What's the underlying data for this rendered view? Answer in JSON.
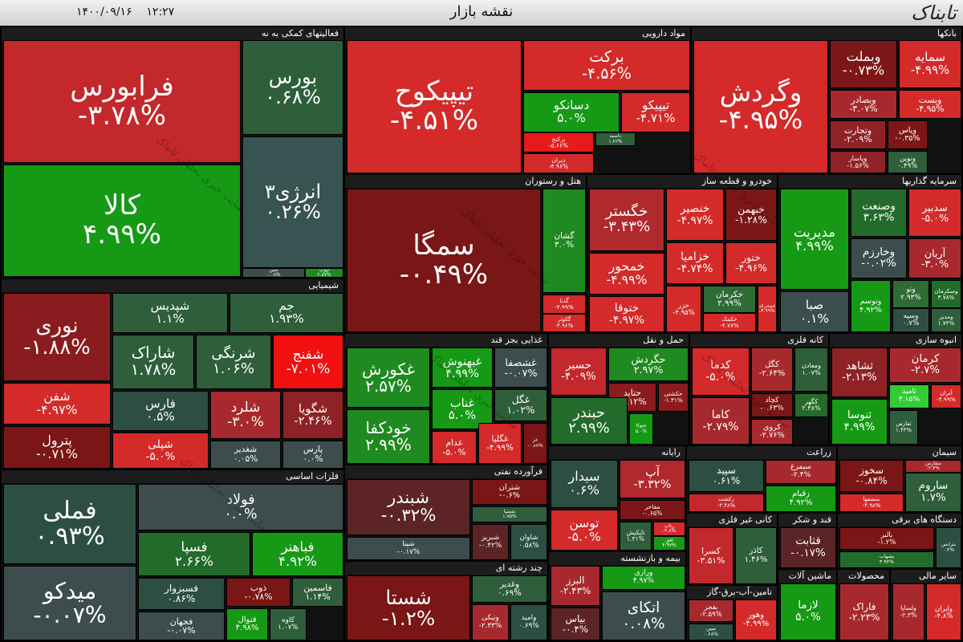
{
  "header": {
    "title": "نقشه بازار",
    "date": "۱۴۰۰/۰۹/۱۶",
    "time": "۱۲:۲۷",
    "logo": "تابناک",
    "watermark": "سایت خبری تحلیلی تابناک"
  },
  "sectors": [
    {
      "name": "فعالیتهای کمکی به نه",
      "tiles": [
        {
          "name": "فرابورس",
          "change": "-۳.۷۸%",
          "color": "#c2282c"
        },
        {
          "name": "کالا",
          "change": "۴.۹۹%",
          "color": "#169a16"
        },
        {
          "name": "بورس",
          "change": "۰.۶۸%",
          "color": "#2e5e3a"
        },
        {
          "name": "انرژی۳",
          "change": "۰.۲۶%",
          "color": "#385452"
        },
        {
          "name": "امین",
          "change": "۰.۰۸%",
          "color": "#3d4d4d"
        },
        {
          "name": "تیوپ",
          "change": "۲.۸۷%",
          "color": "#1f8a1f"
        }
      ]
    },
    {
      "name": "مواد دارویی",
      "tiles": [
        {
          "name": "تیپیکوح",
          "change": "-۴.۵۱%",
          "color": "#d42a2a"
        },
        {
          "name": "برکت",
          "change": "-۴.۵۶%",
          "color": "#d42a2a"
        },
        {
          "name": "دسانکو",
          "change": "۵.۰%",
          "color": "#169a16"
        },
        {
          "name": "تیپیکو",
          "change": "-۴.۷۱%",
          "color": "#d42a2a"
        },
        {
          "name": "برکتح",
          "change": "-۵.۶۶%",
          "color": "#e51a1a"
        },
        {
          "name": "دیران",
          "change": "-۴.۹۶%",
          "color": "#d42a2a"
        },
        {
          "name": "داسیه",
          "change": "۱.۲۲%",
          "color": "#2e5e3a"
        }
      ]
    },
    {
      "name": "بانکها",
      "tiles": [
        {
          "name": "وگردش",
          "change": "-۴.۹۵%",
          "color": "#d42a2a"
        },
        {
          "name": "وبملت",
          "change": "-۰.۷۳%",
          "color": "#7d1717"
        },
        {
          "name": "سمایه",
          "change": "-۴.۹۹%",
          "color": "#d42a2a"
        },
        {
          "name": "وبصادر",
          "change": "-۳.۰۷%",
          "color": "#a8292d"
        },
        {
          "name": "وپست",
          "change": "-۴.۹۵%",
          "color": "#d42a2a"
        },
        {
          "name": "وتجارت",
          "change": "-۲.۰۹%",
          "color": "#8f2226"
        },
        {
          "name": "وپاس",
          "change": "-۰.۳۵%",
          "color": "#7d1717"
        },
        {
          "name": "وپاسار",
          "change": "-۱.۵۶%",
          "color": "#8f2226"
        },
        {
          "name": "ونوین",
          "change": "۰.۴۹%",
          "color": "#2e5e3a"
        }
      ]
    },
    {
      "name": "هتل و رستوران",
      "tiles": [
        {
          "name": "سمگا",
          "change": "-۰.۴۹%",
          "color": "#7a1616"
        },
        {
          "name": "گشان",
          "change": "۳.۰%",
          "color": "#1f8a1f"
        },
        {
          "name": "گدنا",
          "change": "-۴.۹۹%",
          "color": "#d42a2a"
        },
        {
          "name": "گکوثر",
          "change": "-۴.۹۶%",
          "color": "#d42a2a"
        }
      ]
    },
    {
      "name": "خودرو و قطعه ساز",
      "tiles": [
        {
          "name": "خگستر",
          "change": "-۳.۴۳%",
          "color": "#b0292d"
        },
        {
          "name": "خنصیر",
          "change": "-۴.۹۷%",
          "color": "#d42a2a"
        },
        {
          "name": "خبهمن",
          "change": "-۱.۲۸%",
          "color": "#7d1717"
        },
        {
          "name": "خزامیا",
          "change": "-۴.۷۴%",
          "color": "#d42a2a"
        },
        {
          "name": "ختور",
          "change": "-۴.۹۶%",
          "color": "#d42a2a"
        },
        {
          "name": "خمحور",
          "change": "-۴.۹۹%",
          "color": "#d42a2a"
        },
        {
          "name": "ختوقا",
          "change": "-۴.۹۷%",
          "color": "#d42a2a"
        },
        {
          "name": "خزر",
          "change": "-۴.۹۵%",
          "color": "#d42a2a"
        },
        {
          "name": "خکرمان",
          "change": "۲.۹۹%",
          "color": "#2e6b35"
        },
        {
          "name": "خکمک",
          "change": "-۴.۷۷%",
          "color": "#d42a2a"
        },
        {
          "name": "خمحرکه",
          "change": "-۴.۹۹%",
          "color": "#d42a2a"
        }
      ]
    },
    {
      "name": "سرمایه گذاریها",
      "tiles": [
        {
          "name": "مدیریت",
          "change": "۴.۹۹%",
          "color": "#169a16"
        },
        {
          "name": "وصنعت",
          "change": "۳.۶۳%",
          "color": "#236b2a"
        },
        {
          "name": "سدبیر",
          "change": "-۵.۰%",
          "color": "#d42a2a"
        },
        {
          "name": "وخارزم",
          "change": "-۰.۰۲%",
          "color": "#3d4d4d"
        },
        {
          "name": "آریان",
          "change": "-۳.۰%",
          "color": "#a8292d"
        },
        {
          "name": "صبا",
          "change": "۰.۱%",
          "color": "#3a4e4e"
        },
        {
          "name": "وتوسم",
          "change": "۴.۹۲%",
          "color": "#169a16"
        },
        {
          "name": "وتو",
          "change": "۲.۹۳%",
          "color": "#2e6b35"
        },
        {
          "name": "وسپه",
          "change": "۰.۷%",
          "color": "#2d4f42"
        },
        {
          "name": "وسکرمان",
          "change": "۳.۷۸%",
          "color": "#236b2a"
        },
        {
          "name": "ومدیر",
          "change": "۱.۷۴%",
          "color": "#2e5e3a"
        }
      ]
    },
    {
      "name": "شیمیایی",
      "tiles": [
        {
          "name": "نوری",
          "change": "-۱.۸۸%",
          "color": "#8a1c1f"
        },
        {
          "name": "شپدیس",
          "change": "۱.۱%",
          "color": "#2e5e3a"
        },
        {
          "name": "جم",
          "change": "۱.۹۳%",
          "color": "#2e5e3a"
        },
        {
          "name": "شاراک",
          "change": "۱.۷۸%",
          "color": "#2e5e3a"
        },
        {
          "name": "شرنگی",
          "change": "۱.۰۶%",
          "color": "#2e5e3a"
        },
        {
          "name": "شفنج",
          "change": "-۷.۰۱%",
          "color": "#f01010"
        },
        {
          "name": "شفن",
          "change": "-۴.۹۷%",
          "color": "#d42a2a"
        },
        {
          "name": "پترول",
          "change": "-۰.۷۱%",
          "color": "#7a1616"
        },
        {
          "name": "فارس",
          "change": "۰.۵%",
          "color": "#2d4f42"
        },
        {
          "name": "شلرد",
          "change": "-۳.۰%",
          "color": "#a8292d"
        },
        {
          "name": "شگویا",
          "change": "-۲.۴۶%",
          "color": "#8f2226"
        },
        {
          "name": "شپلی",
          "change": "-۵.۰%",
          "color": "#d42a2a"
        },
        {
          "name": "شغدیر",
          "change": "۰.۰۵%",
          "color": "#3d4d4d"
        },
        {
          "name": "پارس",
          "change": "۰.۰%",
          "color": "#3d4d4d"
        }
      ]
    },
    {
      "name": "فلزات اساسی",
      "tiles": [
        {
          "name": "فملی",
          "change": "۰.۹۳%",
          "color": "#2d4f42"
        },
        {
          "name": "فولاد",
          "change": "۰.۰%",
          "color": "#3d4d4d"
        },
        {
          "name": "فسپا",
          "change": "۲.۶۶%",
          "color": "#236b2a"
        },
        {
          "name": "فباهنر",
          "change": "۴.۹۲%",
          "color": "#169a16"
        },
        {
          "name": "میدکو",
          "change": "-۰.۰۷%",
          "color": "#3d4d4d"
        },
        {
          "name": "فسبزوار",
          "change": "۰.۸۶%",
          "color": "#2d4f42"
        },
        {
          "name": "فجهان",
          "change": "-۰.۰۷%",
          "color": "#3d4d4d"
        },
        {
          "name": "ذوب",
          "change": "-۰.۷۸%",
          "color": "#7a1616"
        },
        {
          "name": "فاسمین",
          "change": "۱.۱۴%",
          "color": "#2e5e3a"
        },
        {
          "name": "فنوال",
          "change": "۴.۹۸%",
          "color": "#169a16"
        },
        {
          "name": "کاوه",
          "change": "۱.۰۷%",
          "color": "#2e5e3a"
        }
      ]
    },
    {
      "name": "غذایی بجز قند",
      "tiles": [
        {
          "name": "غکورش",
          "change": "۲.۵۷%",
          "color": "#1f8a1f"
        },
        {
          "name": "غبهنوش",
          "change": "۴.۹۹%",
          "color": "#169a16"
        },
        {
          "name": "غشصفا",
          "change": "-۰.۰۷%",
          "color": "#3d4d4d"
        },
        {
          "name": "غناب",
          "change": "۵.۰%",
          "color": "#169a16"
        },
        {
          "name": "غگل",
          "change": "۱.۰۲%",
          "color": "#2e5e3a"
        },
        {
          "name": "خودکفا",
          "change": "۲.۹۹%",
          "color": "#1f8a1f"
        },
        {
          "name": "غدام",
          "change": "-۵.۰%",
          "color": "#d42a2a"
        },
        {
          "name": "غگلپا",
          "change": "-۴.۹۹%",
          "color": "#d42a2a"
        },
        {
          "name": "غز",
          "change": "-۰.۸۷%",
          "color": "#7a1616"
        }
      ]
    },
    {
      "name": "حمل و نقل",
      "tiles": [
        {
          "name": "حسیر",
          "change": "-۴.۰۹%",
          "color": "#c2282c"
        },
        {
          "name": "حگردش",
          "change": "۲.۹۷%",
          "color": "#1f8a1f"
        },
        {
          "name": "حتاید",
          "change": "-۱.۱۲%",
          "color": "#8a1c1f"
        },
        {
          "name": "حکشتی",
          "change": "-۱.۳۱%",
          "color": "#8a1c1f"
        },
        {
          "name": "حبندر",
          "change": "۲.۹۹%",
          "color": "#236b2a"
        },
        {
          "name": "حتوکا",
          "change": "۵.۰%",
          "color": "#169a16"
        }
      ]
    },
    {
      "name": "کانه فلزی",
      "tiles": [
        {
          "name": "کدما",
          "change": "-۵.۰%",
          "color": "#d42a2a"
        },
        {
          "name": "کگل",
          "change": "-۲.۶۴%",
          "color": "#a8292d"
        },
        {
          "name": "ومعادن",
          "change": "۱.۰۷%",
          "color": "#2e5e3a"
        },
        {
          "name": "کچاد",
          "change": "-۰.۶۳%",
          "color": "#7a1616"
        },
        {
          "name": "کگهر",
          "change": "۲.۴۸%",
          "color": "#236b2a"
        },
        {
          "name": "کاما",
          "change": "-۲.۷۹%",
          "color": "#a8292d"
        },
        {
          "name": "کروی",
          "change": "-۲.۷۶%",
          "color": "#a8292d"
        }
      ]
    },
    {
      "name": "انبوه سازی",
      "tiles": [
        {
          "name": "ثشاهد",
          "change": "-۲.۱۳%",
          "color": "#8f2226"
        },
        {
          "name": "کرمان",
          "change": "-۲.۷%",
          "color": "#a8292d"
        },
        {
          "name": "ثامید",
          "change": "۴.۱۵%",
          "color": "#33cc33"
        },
        {
          "name": "آتران",
          "change": "-۴.۹۹%",
          "color": "#d42a2a"
        },
        {
          "name": "ثنوسا",
          "change": "۴.۹۹%",
          "color": "#169a16"
        },
        {
          "name": "ثفارس",
          "change": "۱.۴۳%",
          "color": "#2e5e3a"
        }
      ]
    },
    {
      "name": "فرآورده نفتی",
      "tiles": [
        {
          "name": "شبندر",
          "change": "-۰.۳۲%",
          "color": "#5c2424"
        },
        {
          "name": "شتران",
          "change": "-۰.۶%",
          "color": "#7a1616"
        },
        {
          "name": "شسپا",
          "change": "۱.۷۵%",
          "color": "#2e5e3a"
        },
        {
          "name": "شبریز",
          "change": "-۰.۴۲%",
          "color": "#5c2424"
        },
        {
          "name": "شاوان",
          "change": "۰.۵۸%",
          "color": "#2d4f42"
        },
        {
          "name": "شپنا",
          "change": "-۰.۱۷%",
          "color": "#3d4d4d"
        }
      ]
    },
    {
      "name": "چند رشته ای",
      "tiles": [
        {
          "name": "شستا",
          "change": "-۱.۲%",
          "color": "#7a1616"
        },
        {
          "name": "وغدیر",
          "change": "۰.۶۹%",
          "color": "#2e5e3a"
        },
        {
          "name": "ونیکی",
          "change": "-۲.۳۳%",
          "color": "#a8292d"
        },
        {
          "name": "وامید",
          "change": "۰.۶۹%",
          "color": "#2d4f42"
        }
      ]
    },
    {
      "name": "رایانه",
      "tiles": [
        {
          "name": "سیدار",
          "change": "۰.۶%",
          "color": "#2d4f42"
        },
        {
          "name": "آپ",
          "change": "-۳.۳۲%",
          "color": "#b0292d"
        },
        {
          "name": "مفاخر",
          "change": "-۰.۶۵%",
          "color": "#7a1616"
        },
        {
          "name": "توسن",
          "change": "-۵.۰%",
          "color": "#d42a2a"
        },
        {
          "name": "تاپکیش",
          "change": "۱.۳۱%",
          "color": "#2e5e3a"
        },
        {
          "name": "رتاپ",
          "change": "-۴.۸%",
          "color": "#d42a2a"
        },
        {
          "name": "افق",
          "change": "۴.۹۷%",
          "color": "#169a16"
        }
      ]
    },
    {
      "name": "زراعت",
      "tiles": [
        {
          "name": "سپید",
          "change": "۰.۶۱%",
          "color": "#2d4f42"
        },
        {
          "name": "سیمرغ",
          "change": "-۲.۴%",
          "color": "#a8292d"
        },
        {
          "name": "زقیام",
          "change": "۴.۹۲%",
          "color": "#169a16"
        },
        {
          "name": "زکشت",
          "change": "-۳.۴۸%",
          "color": "#c2282c"
        }
      ]
    },
    {
      "name": "سیمان",
      "tiles": [
        {
          "name": "سخوز",
          "change": "-۰.۸۴%",
          "color": "#7a1616"
        },
        {
          "name": "سصفها",
          "change": "-۴.۹۸%",
          "color": "#d42a2a"
        },
        {
          "name": "سفارس",
          "change": "-۲.۳%",
          "color": "#a8292d"
        },
        {
          "name": "ساروم",
          "change": "۱.۷%",
          "color": "#2e5e3a"
        }
      ]
    },
    {
      "name": "کانی غیر فلزی",
      "tiles": [
        {
          "name": "کسرا",
          "change": "-۳.۵۱%",
          "color": "#c2282c"
        },
        {
          "name": "کاذر",
          "change": "۱.۴۶%",
          "color": "#2e5e3a"
        }
      ]
    },
    {
      "name": "قند و شکر",
      "tiles": [
        {
          "name": "قثابت",
          "change": "-۰.۱۷%",
          "color": "#5c2424"
        }
      ]
    },
    {
      "name": "دستگاه های برقی",
      "tiles": [
        {
          "name": "بالبر",
          "change": "-۱.۲%",
          "color": "#7a1616"
        },
        {
          "name": "بشهاب",
          "change": "۳.۹۲%",
          "color": "#236b2a"
        },
        {
          "name": "بترانس",
          "change": "۰.۴%",
          "color": "#2d4f42"
        }
      ]
    },
    {
      "name": "بیمه و بازنشسته",
      "tiles": [
        {
          "name": "البرز",
          "change": "-۲.۴۳%",
          "color": "#a8292d"
        },
        {
          "name": "ورازی",
          "change": "۴.۹۷%",
          "color": "#169a16"
        },
        {
          "name": "اتکای",
          "change": "۰.۰۸%",
          "color": "#3d4d4d"
        },
        {
          "name": "بیاس",
          "change": "-۰.۴%",
          "color": "#5c2424"
        }
      ]
    },
    {
      "name": "تامین-آب-برق-گاز",
      "tiles": [
        {
          "name": "بفجر",
          "change": "-۲.۵۹%",
          "color": "#a8292d"
        },
        {
          "name": "وهور",
          "change": "-۴.۹۹%",
          "color": "#d42a2a"
        },
        {
          "name": "مبین",
          "change": "۰.۶۸%",
          "color": "#2d4f42"
        }
      ]
    },
    {
      "name": "ماشین آلات",
      "tiles": [
        {
          "name": "لازما",
          "change": "۵.۰%",
          "color": "#169a16"
        }
      ]
    },
    {
      "name": "محصولات فلزی",
      "tiles": [
        {
          "name": "فاراک",
          "change": "-۲.۲۳%",
          "color": "#a8292d"
        }
      ]
    },
    {
      "name": "سایر مالی",
      "tiles": [
        {
          "name": "ولساپا",
          "change": "-۲.۳%",
          "color": "#a8292d"
        },
        {
          "name": "وایران",
          "change": "-۴.۸%",
          "color": "#d42a2a"
        }
      ]
    }
  ]
}
